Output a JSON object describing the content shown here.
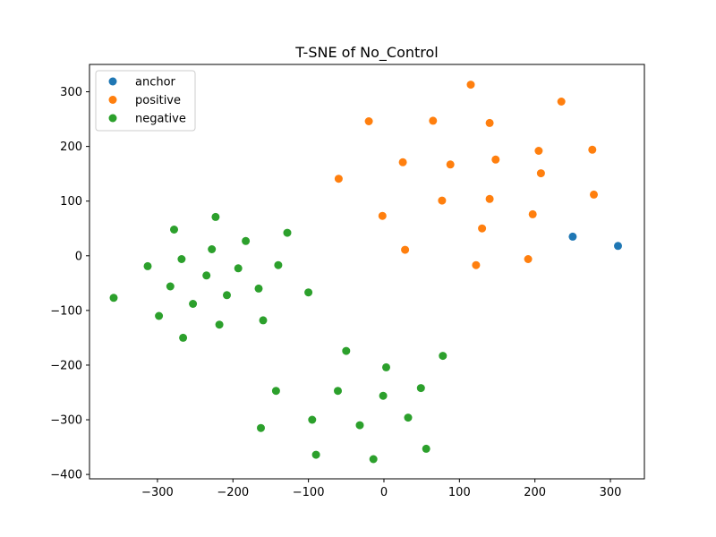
{
  "chart_data": {
    "type": "scatter",
    "title": "T-SNE of No_Control",
    "xlabel": "",
    "ylabel": "",
    "xlim": [
      -390,
      345
    ],
    "ylim": [
      -408,
      350
    ],
    "xticks": [
      -300,
      -200,
      -100,
      0,
      100,
      200,
      300
    ],
    "yticks": [
      -400,
      -300,
      -200,
      -100,
      0,
      100,
      200,
      300
    ],
    "grid": false,
    "legend_position": "top-left",
    "series": [
      {
        "name": "anchor",
        "color": "#1f77b4",
        "points": [
          [
            250,
            35
          ],
          [
            310,
            18
          ]
        ]
      },
      {
        "name": "positive",
        "color": "#ff7f0e",
        "points": [
          [
            115,
            313
          ],
          [
            235,
            282
          ],
          [
            -20,
            246
          ],
          [
            65,
            247
          ],
          [
            140,
            243
          ],
          [
            205,
            192
          ],
          [
            276,
            194
          ],
          [
            25,
            171
          ],
          [
            88,
            167
          ],
          [
            148,
            176
          ],
          [
            208,
            151
          ],
          [
            -60,
            141
          ],
          [
            77,
            101
          ],
          [
            140,
            104
          ],
          [
            278,
            112
          ],
          [
            -2,
            73
          ],
          [
            197,
            76
          ],
          [
            130,
            50
          ],
          [
            28,
            11
          ],
          [
            122,
            -17
          ],
          [
            191,
            -6
          ]
        ]
      },
      {
        "name": "negative",
        "color": "#2ca02c",
        "points": [
          [
            -278,
            48
          ],
          [
            -223,
            71
          ],
          [
            -228,
            12
          ],
          [
            -183,
            27
          ],
          [
            -128,
            42
          ],
          [
            -268,
            -6
          ],
          [
            -313,
            -19
          ],
          [
            -235,
            -36
          ],
          [
            -193,
            -23
          ],
          [
            -140,
            -17
          ],
          [
            -283,
            -56
          ],
          [
            -208,
            -72
          ],
          [
            -166,
            -60
          ],
          [
            -100,
            -67
          ],
          [
            -358,
            -77
          ],
          [
            -253,
            -88
          ],
          [
            -298,
            -110
          ],
          [
            -218,
            -126
          ],
          [
            -160,
            -118
          ],
          [
            -266,
            -150
          ],
          [
            -50,
            -174
          ],
          [
            78,
            -183
          ],
          [
            3,
            -204
          ],
          [
            -143,
            -247
          ],
          [
            -61,
            -247
          ],
          [
            49,
            -242
          ],
          [
            -1,
            -256
          ],
          [
            -95,
            -300
          ],
          [
            -32,
            -310
          ],
          [
            32,
            -296
          ],
          [
            -163,
            -315
          ],
          [
            -90,
            -364
          ],
          [
            56,
            -353
          ],
          [
            -14,
            -372
          ]
        ]
      }
    ]
  }
}
